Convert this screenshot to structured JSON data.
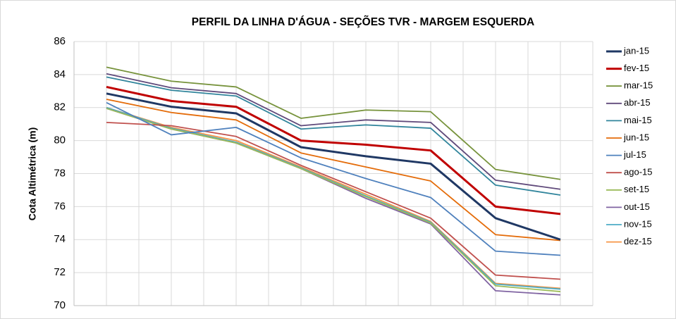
{
  "chart_data": {
    "type": "line",
    "title": "PERFIL DA LINHA D'ÁGUA - SEÇÕES TVR - MARGEM ESQUERDA",
    "y_label": "Cota  Altimétrica  (m)",
    "categories": [
      null,
      null,
      null,
      null,
      null,
      null,
      null,
      null
    ],
    "ylim": [
      70,
      86
    ],
    "yticks": [
      70,
      72,
      74,
      76,
      78,
      80,
      82,
      84,
      86
    ],
    "grid": true,
    "legend": "right",
    "series": [
      {
        "name": "jan-15",
        "color": "#1f3864",
        "width": 3,
        "values": [
          82.85,
          82.05,
          81.65,
          79.6,
          79.05,
          78.6,
          75.3,
          74.0
        ]
      },
      {
        "name": "fev-15",
        "color": "#c00000",
        "width": 3,
        "values": [
          83.25,
          82.4,
          82.05,
          80.0,
          79.75,
          79.4,
          76.0,
          75.55
        ]
      },
      {
        "name": "mar-15",
        "color": "#77933c",
        "width": 1.8,
        "values": [
          84.45,
          83.6,
          83.25,
          81.35,
          81.85,
          81.75,
          78.25,
          77.65
        ]
      },
      {
        "name": "abr-15",
        "color": "#604a7b",
        "width": 1.8,
        "values": [
          84.05,
          83.2,
          82.85,
          80.9,
          81.25,
          81.1,
          77.6,
          77.05
        ]
      },
      {
        "name": "mai-15",
        "color": "#31859c",
        "width": 1.8,
        "values": [
          83.85,
          83.05,
          82.7,
          80.7,
          80.95,
          80.75,
          77.3,
          76.7
        ]
      },
      {
        "name": "jun-15",
        "color": "#e46c0a",
        "width": 1.8,
        "values": [
          82.5,
          81.7,
          81.25,
          79.25,
          78.4,
          77.55,
          74.3,
          73.95
        ]
      },
      {
        "name": "jul-15",
        "color": "#4f81bd",
        "width": 1.8,
        "values": [
          82.3,
          80.35,
          80.8,
          78.95,
          77.7,
          76.55,
          73.3,
          73.05
        ]
      },
      {
        "name": "ago-15",
        "color": "#c0504d",
        "width": 1.8,
        "values": [
          81.1,
          80.9,
          80.25,
          78.5,
          76.9,
          75.3,
          71.85,
          71.6
        ]
      },
      {
        "name": "set-15",
        "color": "#9bbb59",
        "width": 1.8,
        "values": [
          81.95,
          80.7,
          79.85,
          78.3,
          76.6,
          75.0,
          71.2,
          70.85
        ]
      },
      {
        "name": "out-15",
        "color": "#8064a2",
        "width": 1.8,
        "values": [
          81.95,
          80.7,
          79.85,
          78.3,
          76.5,
          74.95,
          70.9,
          70.65
        ]
      },
      {
        "name": "nov-15",
        "color": "#4bacc6",
        "width": 1.8,
        "values": [
          82.0,
          80.75,
          79.9,
          78.35,
          76.65,
          75.05,
          71.3,
          71.0
        ]
      },
      {
        "name": "dez-15",
        "color": "#f79646",
        "width": 1.8,
        "values": [
          82.0,
          80.8,
          80.0,
          78.4,
          76.75,
          75.1,
          71.35,
          71.05
        ]
      }
    ]
  }
}
